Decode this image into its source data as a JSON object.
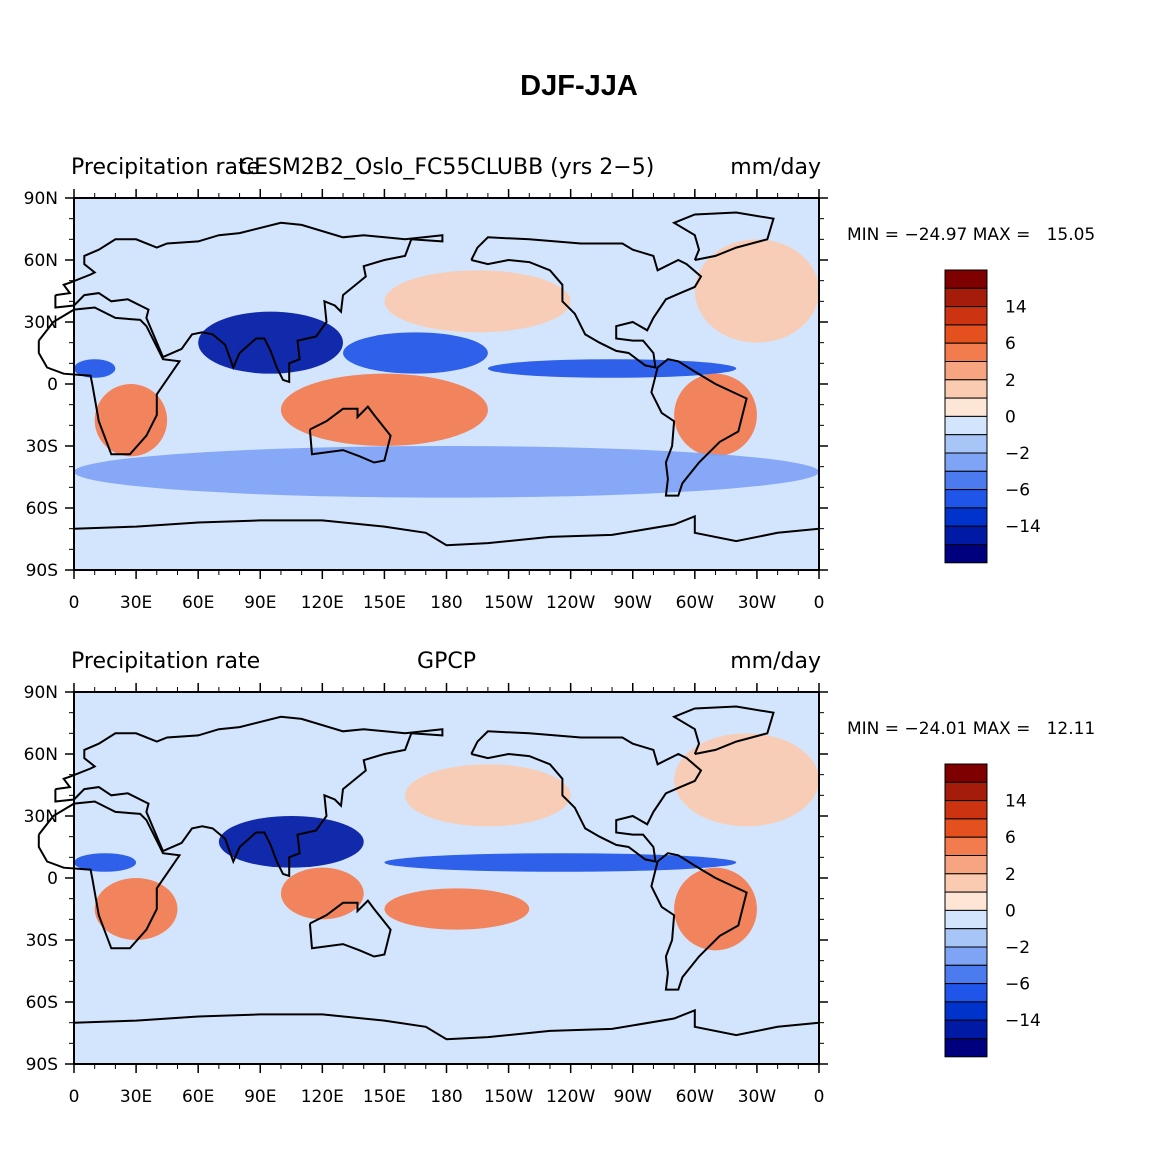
{
  "title": "DJF-JJA",
  "colors": {
    "levels": [
      "#00007f",
      "#001aa5",
      "#0033cc",
      "#1f55e8",
      "#4c7bf0",
      "#7fa3f5",
      "#a8c5f8",
      "#d3e5fd",
      "#fde6d6",
      "#fbcbb1",
      "#f7a580",
      "#f37c4f",
      "#e5511e",
      "#cc3311",
      "#a51c0a",
      "#7f0000"
    ]
  },
  "colorbar_labels": [
    "14",
    "6",
    "2",
    "0",
    "−2",
    "−6",
    "−14"
  ],
  "chart_data": [
    {
      "type": "heatmap",
      "title_left": "Precipitation rate",
      "title_center": "CESM2B2_Oslo_FC55CLUBB (yrs 2−5)",
      "title_right": "mm/day",
      "stats": "MIN = −24.97 MAX =   15.05",
      "x_ticks": [
        "0",
        "30E",
        "60E",
        "90E",
        "120E",
        "150E",
        "180",
        "150W",
        "120W",
        "90W",
        "60W",
        "30W",
        "0"
      ],
      "y_ticks": [
        "90N",
        "60N",
        "30N",
        "0",
        "30S",
        "60S",
        "90S"
      ],
      "xlim": [
        0,
        360
      ],
      "ylim": [
        -90,
        90
      ],
      "colorbar_labels": [
        "14",
        "6",
        "2",
        "0",
        "−2",
        "−6",
        "−14"
      ],
      "features": [
        {
          "name": "tropical Atlantic/Africa wet band",
          "lon": [
            0,
            20
          ],
          "lat": [
            3,
            12
          ],
          "value": -6
        },
        {
          "name": "Indian/Asian monsoon",
          "lon": [
            60,
            130
          ],
          "lat": [
            5,
            35
          ],
          "value": -14
        },
        {
          "name": "western Pacific",
          "lon": [
            130,
            200
          ],
          "lat": [
            5,
            25
          ],
          "value": -6
        },
        {
          "name": "ITCZ east Pacific",
          "lon": [
            200,
            320
          ],
          "lat": [
            3,
            12
          ],
          "value": -6
        },
        {
          "name": "South Africa",
          "lon": [
            10,
            45
          ],
          "lat": [
            -35,
            0
          ],
          "value": 6
        },
        {
          "name": "Maritime Continent / Australia",
          "lon": [
            100,
            200
          ],
          "lat": [
            -30,
            5
          ],
          "value": 6
        },
        {
          "name": "South America",
          "lon": [
            290,
            330
          ],
          "lat": [
            -35,
            5
          ],
          "value": 6
        },
        {
          "name": "North Pacific storm track",
          "lon": [
            150,
            240
          ],
          "lat": [
            25,
            55
          ],
          "value": 2
        },
        {
          "name": "North Atlantic",
          "lon": [
            300,
            360
          ],
          "lat": [
            20,
            70
          ],
          "value": 2
        },
        {
          "name": "Southern Ocean",
          "lon": [
            0,
            360
          ],
          "lat": [
            -55,
            -30
          ],
          "value": -2
        }
      ]
    },
    {
      "type": "heatmap",
      "title_left": "Precipitation rate",
      "title_center": "GPCP",
      "title_right": "mm/day",
      "stats": "MIN = −24.01 MAX =   12.11",
      "x_ticks": [
        "0",
        "30E",
        "60E",
        "90E",
        "120E",
        "150E",
        "180",
        "150W",
        "120W",
        "90W",
        "60W",
        "30W",
        "0"
      ],
      "y_ticks": [
        "90N",
        "60N",
        "30N",
        "0",
        "30S",
        "60S",
        "90S"
      ],
      "xlim": [
        0,
        360
      ],
      "ylim": [
        -90,
        90
      ],
      "colorbar_labels": [
        "14",
        "6",
        "2",
        "0",
        "−2",
        "−6",
        "−14"
      ],
      "features": [
        {
          "name": "tropical Atlantic/Africa wet band",
          "lon": [
            0,
            30
          ],
          "lat": [
            3,
            12
          ],
          "value": -6
        },
        {
          "name": "Indian/Asian monsoon",
          "lon": [
            70,
            140
          ],
          "lat": [
            5,
            30
          ],
          "value": -14
        },
        {
          "name": "ITCZ Pacific",
          "lon": [
            150,
            320
          ],
          "lat": [
            3,
            12
          ],
          "value": -6
        },
        {
          "name": "South Africa",
          "lon": [
            10,
            50
          ],
          "lat": [
            -30,
            0
          ],
          "value": 6
        },
        {
          "name": "Maritime Continent / Australia",
          "lon": [
            100,
            140
          ],
          "lat": [
            -20,
            5
          ],
          "value": 6
        },
        {
          "name": "SPCZ",
          "lon": [
            150,
            220
          ],
          "lat": [
            -25,
            -5
          ],
          "value": 6
        },
        {
          "name": "South America",
          "lon": [
            290,
            330
          ],
          "lat": [
            -35,
            5
          ],
          "value": 6
        },
        {
          "name": "North Pacific storm track",
          "lon": [
            160,
            240
          ],
          "lat": [
            25,
            55
          ],
          "value": 2
        },
        {
          "name": "North Atlantic",
          "lon": [
            290,
            360
          ],
          "lat": [
            25,
            70
          ],
          "value": 2
        }
      ]
    }
  ]
}
